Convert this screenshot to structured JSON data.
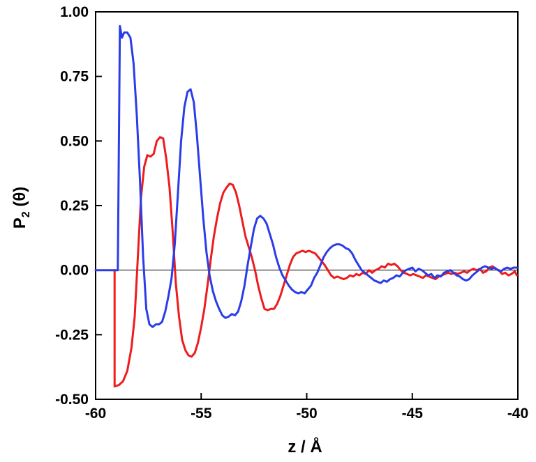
{
  "chart_data": {
    "type": "line",
    "xlabel": "z / Å",
    "ylabel": {
      "main": "P",
      "sub": "2",
      "rest": " (θ)"
    },
    "xlim": [
      -60,
      -40
    ],
    "ylim": [
      -0.5,
      1.0
    ],
    "xticks": [
      {
        "value": -60,
        "label": "-60"
      },
      {
        "value": -55,
        "label": "-55"
      },
      {
        "value": -50,
        "label": "-50"
      },
      {
        "value": -45,
        "label": "-45"
      },
      {
        "value": -40,
        "label": "-40"
      }
    ],
    "yticks": [
      {
        "value": 1.0,
        "label": "1.00"
      },
      {
        "value": 0.75,
        "label": "0.75"
      },
      {
        "value": 0.5,
        "label": "0.50"
      },
      {
        "value": 0.25,
        "label": "0.25"
      },
      {
        "value": 0.0,
        "label": "0.00"
      },
      {
        "value": -0.25,
        "label": "-0.25"
      },
      {
        "value": -0.5,
        "label": "-0.50"
      }
    ],
    "zero_line": true,
    "grid": false,
    "series": [
      {
        "color": "#ee1c1c",
        "x": [
          -59.1,
          -59.1,
          -58.9,
          -58.7,
          -58.5,
          -58.3,
          -58.15,
          -58.0,
          -57.85,
          -57.7,
          -57.55,
          -57.4,
          -57.25,
          -57.1,
          -56.95,
          -56.8,
          -56.65,
          -56.5,
          -56.35,
          -56.2,
          -56.05,
          -55.9,
          -55.75,
          -55.6,
          -55.45,
          -55.3,
          -55.15,
          -55.0,
          -54.85,
          -54.7,
          -54.55,
          -54.4,
          -54.25,
          -54.1,
          -53.95,
          -53.8,
          -53.65,
          -53.5,
          -53.35,
          -53.2,
          -53.05,
          -52.9,
          -52.75,
          -52.6,
          -52.45,
          -52.3,
          -52.15,
          -52.0,
          -51.85,
          -51.7,
          -51.55,
          -51.4,
          -51.25,
          -51.1,
          -50.95,
          -50.8,
          -50.65,
          -50.5,
          -50.35,
          -50.2,
          -50.05,
          -49.9,
          -49.75,
          -49.6,
          -49.45,
          -49.3,
          -49.15,
          -49.0,
          -48.85,
          -48.7,
          -48.55,
          -48.4,
          -48.25,
          -48.1,
          -47.95,
          -47.8,
          -47.65,
          -47.5,
          -47.35,
          -47.2,
          -47.05,
          -46.9,
          -46.75,
          -46.6,
          -46.45,
          -46.3,
          -46.15,
          -46.0,
          -45.85,
          -45.7,
          -45.55,
          -45.4,
          -45.25,
          -45.1,
          -44.95,
          -44.8,
          -44.65,
          -44.5,
          -44.35,
          -44.2,
          -44.05,
          -43.9,
          -43.75,
          -43.6,
          -43.45,
          -43.3,
          -43.15,
          -43.0,
          -42.85,
          -42.7,
          -42.55,
          -42.4,
          -42.25,
          -42.1,
          -41.95,
          -41.8,
          -41.65,
          -41.5,
          -41.35,
          -41.2,
          -41.05,
          -40.9,
          -40.75,
          -40.6,
          -40.45,
          -40.3,
          -40.15,
          -40.05
        ],
        "y": [
          0.0,
          -0.45,
          -0.445,
          -0.43,
          -0.39,
          -0.3,
          -0.18,
          0.05,
          0.28,
          0.4,
          0.445,
          0.44,
          0.45,
          0.5,
          0.515,
          0.51,
          0.43,
          0.32,
          0.15,
          -0.05,
          -0.18,
          -0.27,
          -0.31,
          -0.33,
          -0.335,
          -0.32,
          -0.28,
          -0.22,
          -0.15,
          -0.06,
          0.04,
          0.13,
          0.2,
          0.26,
          0.3,
          0.32,
          0.335,
          0.33,
          0.3,
          0.25,
          0.19,
          0.13,
          0.09,
          0.05,
          -0.0,
          -0.06,
          -0.11,
          -0.15,
          -0.155,
          -0.15,
          -0.15,
          -0.13,
          -0.1,
          -0.06,
          -0.02,
          0.02,
          0.05,
          0.065,
          0.07,
          0.075,
          0.07,
          0.075,
          0.07,
          0.065,
          0.05,
          0.035,
          0.02,
          0.0,
          -0.02,
          -0.03,
          -0.025,
          -0.03,
          -0.035,
          -0.03,
          -0.02,
          -0.025,
          -0.015,
          -0.02,
          -0.01,
          -0.015,
          0.0,
          -0.01,
          0.0,
          0.005,
          0.015,
          0.01,
          0.025,
          0.02,
          0.025,
          0.015,
          0.0,
          -0.01,
          -0.015,
          -0.02,
          -0.015,
          -0.02,
          -0.025,
          -0.03,
          -0.02,
          -0.025,
          -0.03,
          -0.035,
          -0.025,
          -0.02,
          -0.015,
          -0.01,
          -0.015,
          -0.01,
          -0.015,
          -0.01,
          -0.005,
          -0.01,
          0.0,
          0.005,
          0.0,
          0.005,
          -0.01,
          -0.005,
          0.01,
          0.015,
          0.005,
          0.0,
          -0.015,
          -0.01,
          -0.02,
          -0.015,
          -0.005,
          -0.02
        ]
      },
      {
        "color": "#2a3de8",
        "x": [
          -60,
          -59.55,
          -59.1,
          -58.95,
          -58.85,
          -58.75,
          -58.65,
          -58.5,
          -58.35,
          -58.2,
          -58.05,
          -57.9,
          -57.75,
          -57.6,
          -57.45,
          -57.3,
          -57.15,
          -57.0,
          -56.85,
          -56.7,
          -56.55,
          -56.4,
          -56.25,
          -56.1,
          -55.95,
          -55.8,
          -55.65,
          -55.5,
          -55.35,
          -55.2,
          -55.05,
          -54.9,
          -54.75,
          -54.6,
          -54.45,
          -54.3,
          -54.15,
          -54.0,
          -53.85,
          -53.7,
          -53.55,
          -53.4,
          -53.25,
          -53.1,
          -52.95,
          -52.8,
          -52.65,
          -52.5,
          -52.35,
          -52.2,
          -52.05,
          -51.9,
          -51.75,
          -51.6,
          -51.45,
          -51.3,
          -51.15,
          -51.0,
          -50.85,
          -50.7,
          -50.55,
          -50.4,
          -50.25,
          -50.1,
          -49.95,
          -49.8,
          -49.65,
          -49.5,
          -49.35,
          -49.2,
          -49.05,
          -48.9,
          -48.75,
          -48.6,
          -48.45,
          -48.3,
          -48.15,
          -48.0,
          -47.85,
          -47.7,
          -47.55,
          -47.4,
          -47.25,
          -47.1,
          -46.95,
          -46.8,
          -46.65,
          -46.5,
          -46.35,
          -46.2,
          -46.05,
          -45.9,
          -45.75,
          -45.6,
          -45.45,
          -45.3,
          -45.15,
          -45.0,
          -44.85,
          -44.7,
          -44.55,
          -44.4,
          -44.25,
          -44.1,
          -43.95,
          -43.8,
          -43.65,
          -43.5,
          -43.35,
          -43.2,
          -43.05,
          -42.9,
          -42.75,
          -42.6,
          -42.45,
          -42.3,
          -42.15,
          -42.0,
          -41.85,
          -41.7,
          -41.55,
          -41.4,
          -41.25,
          -41.1,
          -40.95,
          -40.8,
          -40.65,
          -40.5,
          -40.35,
          -40.2,
          -40.05
        ],
        "y": [
          0.0,
          0.0,
          0.0,
          0.0,
          0.945,
          0.9,
          0.92,
          0.92,
          0.9,
          0.8,
          0.6,
          0.35,
          0.05,
          -0.15,
          -0.21,
          -0.22,
          -0.21,
          -0.21,
          -0.2,
          -0.16,
          -0.1,
          -0.03,
          0.1,
          0.3,
          0.5,
          0.63,
          0.69,
          0.7,
          0.65,
          0.52,
          0.36,
          0.2,
          0.07,
          -0.02,
          -0.08,
          -0.12,
          -0.15,
          -0.175,
          -0.185,
          -0.18,
          -0.17,
          -0.175,
          -0.16,
          -0.12,
          -0.06,
          0.02,
          0.09,
          0.16,
          0.2,
          0.21,
          0.2,
          0.18,
          0.14,
          0.1,
          0.05,
          0.01,
          -0.02,
          -0.04,
          -0.06,
          -0.075,
          -0.085,
          -0.09,
          -0.085,
          -0.09,
          -0.075,
          -0.06,
          -0.03,
          -0.01,
          0.02,
          0.05,
          0.07,
          0.085,
          0.095,
          0.1,
          0.1,
          0.095,
          0.085,
          0.08,
          0.065,
          0.04,
          0.02,
          0.0,
          -0.01,
          -0.02,
          -0.03,
          -0.04,
          -0.045,
          -0.05,
          -0.04,
          -0.045,
          -0.035,
          -0.03,
          -0.02,
          -0.025,
          -0.01,
          0.0,
          0.005,
          0.01,
          -0.005,
          0.005,
          0.0,
          -0.01,
          -0.02,
          -0.015,
          -0.03,
          -0.02,
          -0.025,
          -0.01,
          -0.005,
          0.0,
          -0.01,
          -0.02,
          -0.025,
          -0.035,
          -0.04,
          -0.035,
          -0.02,
          -0.01,
          0.0,
          0.01,
          0.015,
          0.01,
          0.005,
          0.01,
          0.0,
          -0.005,
          0.005,
          0.01,
          0.005,
          0.01,
          0.01
        ]
      }
    ]
  }
}
